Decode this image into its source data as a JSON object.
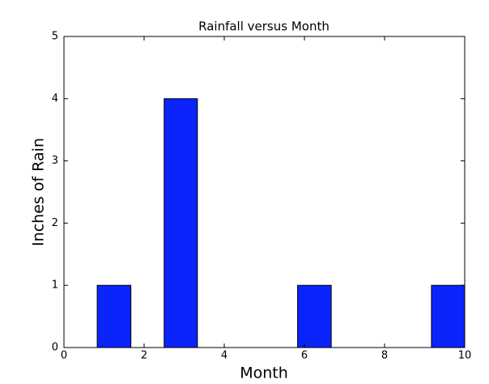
{
  "chart_data": {
    "type": "histogram",
    "title": "Rainfall versus Month",
    "xlabel": "Month",
    "ylabel": "Inches of Rain",
    "bins": [
      0,
      0.83,
      1.67,
      2.5,
      3.33,
      4.17,
      5,
      5.83,
      6.67,
      7.5,
      8.33,
      9.17,
      10
    ],
    "values": [
      0,
      1,
      0,
      4,
      0,
      0,
      0,
      1,
      0,
      0,
      0,
      1
    ],
    "color": "#0b24fb",
    "xlim": [
      0,
      10
    ],
    "xticks": [
      0,
      2,
      4,
      6,
      8,
      10
    ],
    "ylim": [
      0,
      5
    ],
    "yticks": [
      0,
      1,
      2,
      3,
      4,
      5
    ],
    "grid": false
  }
}
